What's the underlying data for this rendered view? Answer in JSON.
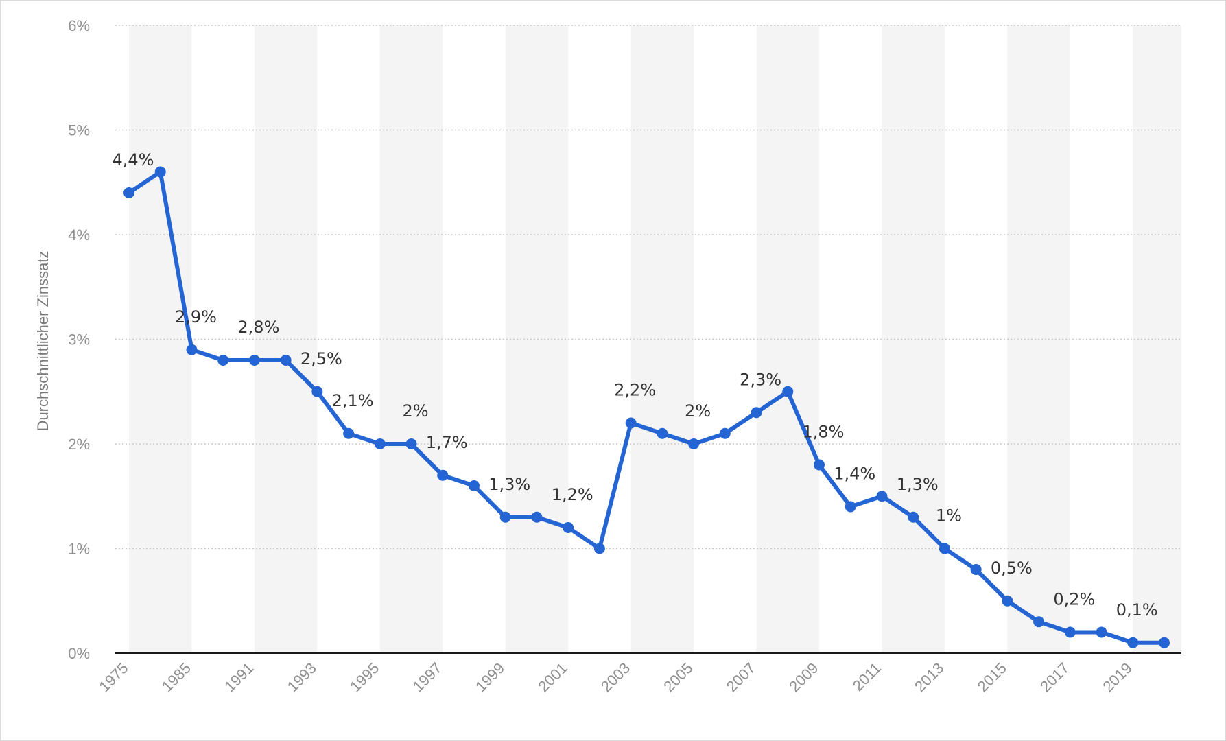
{
  "chart_data": {
    "type": "line",
    "title": "",
    "xlabel": "",
    "ylabel": "Durchschnittlicher Zinssatz",
    "ylim": [
      0,
      6
    ],
    "yticks": [
      "0%",
      "1%",
      "2%",
      "3%",
      "4%",
      "5%",
      "6%"
    ],
    "x_tick_labels": [
      "1975",
      "1985",
      "1991",
      "1993",
      "1995",
      "1997",
      "1999",
      "2001",
      "2003",
      "2005",
      "2007",
      "2009",
      "2011",
      "2013",
      "2015",
      "2017",
      "2019"
    ],
    "grid": "horizontal dotted, alternating shaded column bands",
    "series": [
      {
        "name": "Durchschnittlicher Zinssatz",
        "color": "#2465d3",
        "values": [
          4.4,
          4.6,
          2.9,
          2.8,
          2.8,
          2.8,
          2.5,
          2.1,
          2.0,
          2.0,
          1.7,
          1.6,
          1.3,
          1.3,
          1.2,
          1.0,
          2.2,
          2.1,
          2.0,
          2.1,
          2.3,
          2.5,
          1.8,
          1.4,
          1.5,
          1.3,
          1.0,
          0.8,
          0.5,
          0.3,
          0.2,
          0.2,
          0.1,
          0.1
        ]
      }
    ],
    "data_labels": [
      {
        "index": 0,
        "text": "4,4%"
      },
      {
        "index": 2,
        "text": "2,9%"
      },
      {
        "index": 4,
        "text": "2,8%"
      },
      {
        "index": 6,
        "text": "2,5%"
      },
      {
        "index": 7,
        "text": "2,1%"
      },
      {
        "index": 9,
        "text": "2%"
      },
      {
        "index": 10,
        "text": "1,7%"
      },
      {
        "index": 12,
        "text": "1,3%"
      },
      {
        "index": 14,
        "text": "1,2%"
      },
      {
        "index": 16,
        "text": "2,2%"
      },
      {
        "index": 18,
        "text": "2%"
      },
      {
        "index": 20,
        "text": "2,3%"
      },
      {
        "index": 22,
        "text": "1,8%"
      },
      {
        "index": 23,
        "text": "1,4%"
      },
      {
        "index": 25,
        "text": "1,3%"
      },
      {
        "index": 26,
        "text": "1%"
      },
      {
        "index": 28,
        "text": "0,5%"
      },
      {
        "index": 30,
        "text": "0,2%"
      },
      {
        "index": 32,
        "text": "0,1%"
      }
    ]
  }
}
